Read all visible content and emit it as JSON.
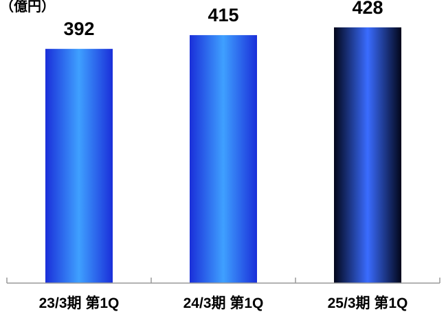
{
  "unit_label": "（億円）",
  "chart_data": {
    "type": "bar",
    "title": "",
    "xlabel": "",
    "ylabel": "",
    "ylim": [
      0,
      460
    ],
    "grid": false,
    "categories": [
      "23/3期 第1Q",
      "24/3期 第1Q",
      "25/3期 第1Q"
    ],
    "values": [
      392,
      415,
      428
    ],
    "data_labels": [
      "392",
      "415",
      "428"
    ],
    "colors": {
      "bar_center": "#3fa0ff",
      "bar_edge": "#1a2fd9",
      "highlight_center": "#3a6cff",
      "highlight_edge": "#02061a",
      "axis": "#999999",
      "text": "#000000"
    },
    "highlight_index": 2
  }
}
